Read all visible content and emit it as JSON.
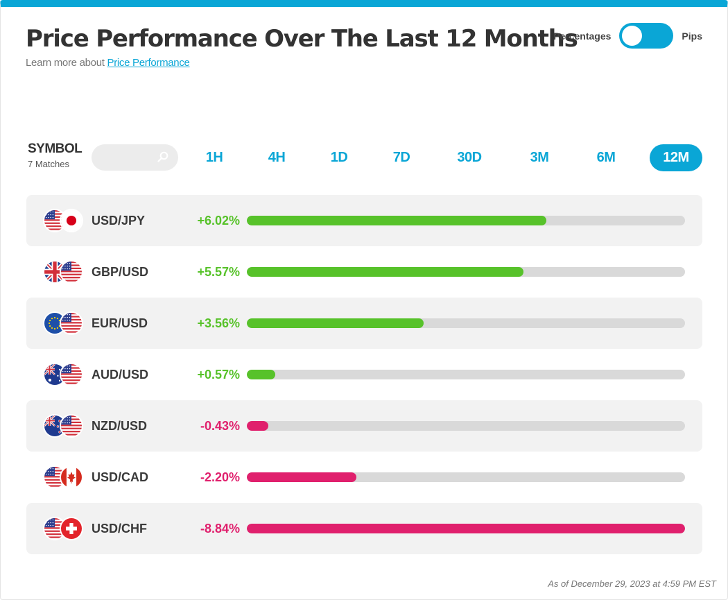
{
  "header": {
    "title": "Price Performance Over The Last 12 Months",
    "learn_prefix": "Learn more about ",
    "learn_link": "Price Performance"
  },
  "toggle": {
    "left_label": "Percentages",
    "right_label": "Pips",
    "state": "Percentages"
  },
  "symbol": {
    "title": "SYMBOL",
    "count": "7 Matches",
    "search_value": ""
  },
  "periods": [
    "1H",
    "4H",
    "1D",
    "7D",
    "30D",
    "3M",
    "6M",
    "12M"
  ],
  "active_period": "12M",
  "colors": {
    "accent": "#0aa6d6",
    "positive": "#57c22a",
    "negative": "#e0206d"
  },
  "rows": [
    {
      "pair": "USD/JPY",
      "value": "+6.02%",
      "fill": 0.683,
      "sign": "pos",
      "flags": [
        "us",
        "jp"
      ]
    },
    {
      "pair": "GBP/USD",
      "value": "+5.57%",
      "fill": 0.632,
      "sign": "pos",
      "flags": [
        "gb",
        "us"
      ]
    },
    {
      "pair": "EUR/USD",
      "value": "+3.56%",
      "fill": 0.404,
      "sign": "pos",
      "flags": [
        "eu",
        "us"
      ]
    },
    {
      "pair": "AUD/USD",
      "value": "+0.57%",
      "fill": 0.065,
      "sign": "pos",
      "flags": [
        "au",
        "us"
      ]
    },
    {
      "pair": "NZD/USD",
      "value": "-0.43%",
      "fill": 0.049,
      "sign": "neg",
      "flags": [
        "nz",
        "us"
      ]
    },
    {
      "pair": "USD/CAD",
      "value": "-2.20%",
      "fill": 0.25,
      "sign": "neg",
      "flags": [
        "us",
        "ca"
      ]
    },
    {
      "pair": "USD/CHF",
      "value": "-8.84%",
      "fill": 1.0,
      "sign": "neg",
      "flags": [
        "us",
        "ch"
      ]
    }
  ],
  "footer": "As of December 29, 2023 at 4:59 PM EST"
}
